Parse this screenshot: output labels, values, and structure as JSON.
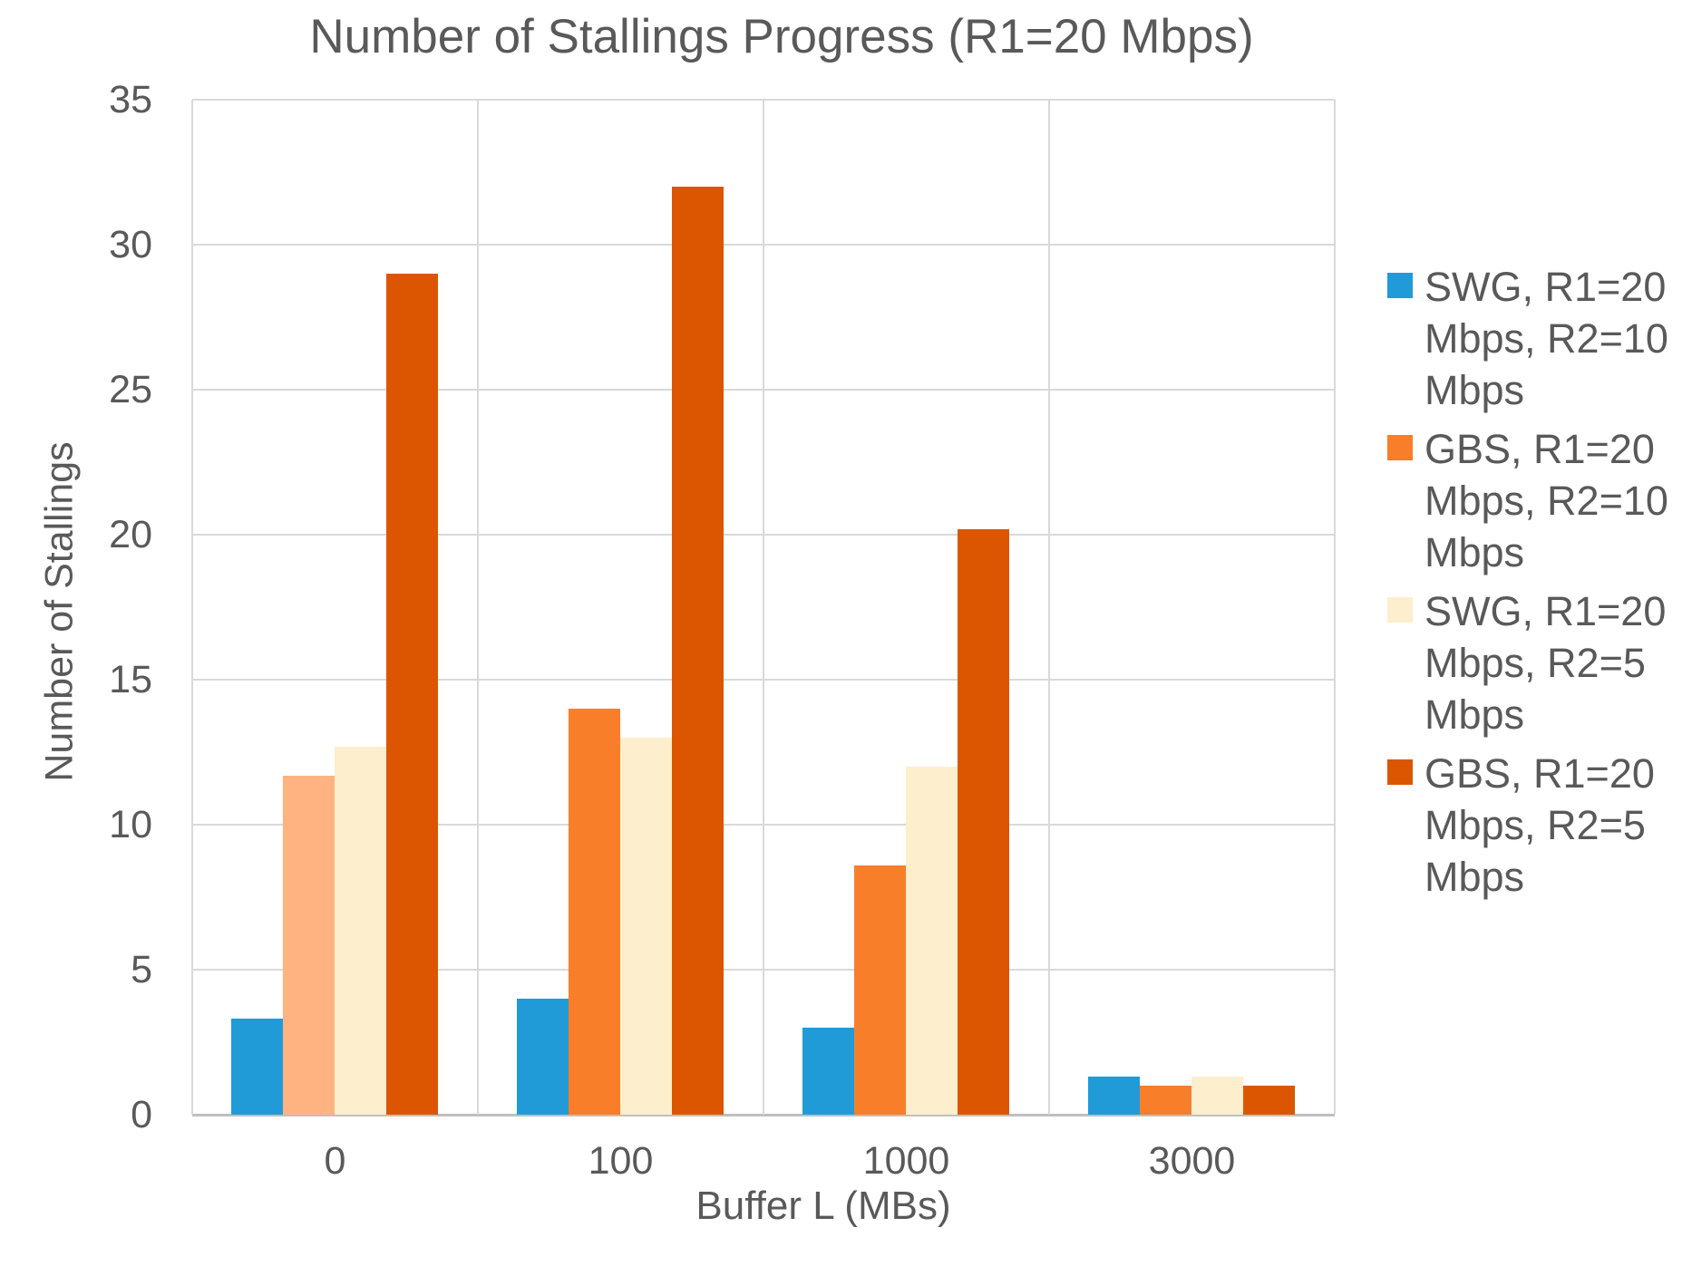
{
  "chart_data": {
    "type": "bar",
    "title": "Number of Stallings Progress (R1=20 Mbps)",
    "xlabel": "Buffer L (MBs)",
    "ylabel": "Number of Stallings",
    "ylim": [
      0,
      35
    ],
    "ytick_step": 5,
    "yticks": [
      35,
      30,
      25,
      20,
      15,
      10,
      5,
      0
    ],
    "categories": [
      "0",
      "100",
      "1000",
      "3000"
    ],
    "series": [
      {
        "name": "SWG, R1=20 Mbps, R2=10 Mbps",
        "legend_lines": [
          "SWG, R1=20",
          "Mbps, R2=10",
          "Mbps"
        ],
        "color": "#209BD8",
        "values": [
          3.3,
          4,
          3,
          1.3
        ]
      },
      {
        "name": "GBS, R1=20 Mbps, R2=10 Mbps",
        "legend_lines": [
          "GBS, R1=20",
          "Mbps, R2=10",
          "Mbps"
        ],
        "color": "#F97E2A",
        "values": [
          11.7,
          14,
          8.6,
          1
        ],
        "bar_colors": [
          "#FFB380",
          null,
          null,
          null
        ]
      },
      {
        "name": "SWG, R1=20 Mbps, R2=5 Mbps",
        "legend_lines": [
          "SWG, R1=20",
          "Mbps, R2=5",
          "Mbps"
        ],
        "color": "#FDEFCD",
        "values": [
          12.7,
          13,
          12,
          1.3
        ]
      },
      {
        "name": "GBS, R1=20 Mbps, R2=5 Mbps",
        "legend_lines": [
          "GBS, R1=20",
          "Mbps, R2=5",
          "Mbps"
        ],
        "color": "#DC5602",
        "values": [
          29,
          32,
          20.2,
          1
        ]
      }
    ],
    "legend_position": "right",
    "grid": "both",
    "colors": {
      "text": "#595959",
      "gridline": "#D9D9D9",
      "axis_line": "#BFBFBF",
      "background": "#FFFFFF"
    }
  }
}
